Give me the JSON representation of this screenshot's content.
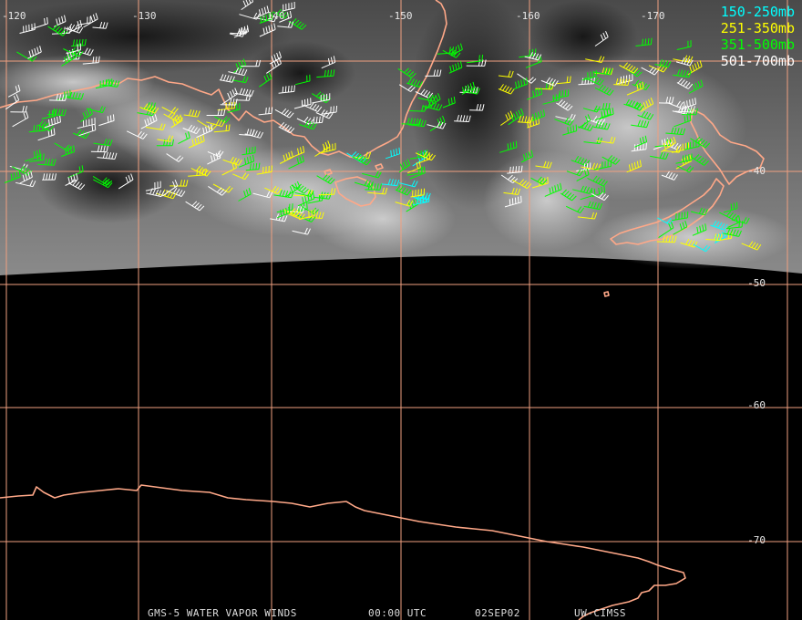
{
  "map": {
    "longitude_labels": [
      "-120",
      "-130",
      "-140",
      "-150",
      "-160",
      "-170"
    ],
    "latitude_labels": [
      "-40",
      "-50",
      "-60",
      "-70"
    ],
    "colors": {
      "grid": "#f0a080",
      "coastline": "#ffa888",
      "imagery_dark": "#0a0a0a",
      "imagery_light": "#cfcfcf"
    }
  },
  "legend": [
    {
      "label": "150-250mb",
      "color": "#00ffff"
    },
    {
      "label": "251-350mb",
      "color": "#ffff00"
    },
    {
      "label": "351-500mb",
      "color": "#00ff00"
    },
    {
      "label": "501-700mb",
      "color": "#ffffff"
    }
  ],
  "footer": {
    "product": "GMS-5 WATER VAPOR WINDS",
    "time": "00:00 UTC",
    "date": "02SEP02",
    "source": "UW-CIMSS"
  }
}
